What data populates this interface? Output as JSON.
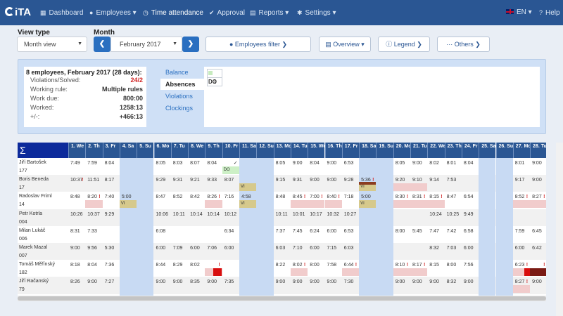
{
  "app": {
    "logo": "iTA"
  },
  "nav": {
    "dashboard": "Dashboard",
    "employees": "Employees",
    "time_attendance": "Time attendance",
    "approval": "Approval",
    "reports": "Reports",
    "settings": "Settings",
    "language": "EN",
    "help": "Help"
  },
  "controls": {
    "view_type_label": "View type",
    "view_type_value": "Month view",
    "month_label": "Month",
    "month_value": "February 2017",
    "employees_filter": "Employees filter",
    "overview": "Overview",
    "legend": "Legend",
    "others": "Others"
  },
  "summary": {
    "title": "8 employees, February 2017 (28 days):",
    "rows": [
      {
        "k": "Violations/Solved:",
        "v": "24/2",
        "red": true
      },
      {
        "k": "Working rule:",
        "v": "Multiple rules"
      },
      {
        "k": "Work due:",
        "v": "800:00"
      },
      {
        "k": "Worked:",
        "v": "1258:13"
      },
      {
        "k": "+/-:",
        "v": "+466:13"
      }
    ]
  },
  "tabs": [
    "Balance",
    "Absences",
    "Violations",
    "Clockings"
  ],
  "active_tab": "Absences",
  "absence_legend": {
    "code": "DO",
    "count": "1",
    "color": "#c7ebbf"
  },
  "grid": {
    "sigma": "Σ",
    "days": [
      "1. We",
      "2. Th",
      "3. Fr",
      "4. Sa",
      "5. Su",
      "6. Mo",
      "7. Tu",
      "8. We",
      "9. Th",
      "10. Fr",
      "11. Sa",
      "12. Su",
      "13. Mo",
      "14. Tu",
      "15. We",
      "16. Th",
      "17. Fr",
      "18. Sa",
      "19. Su",
      "20. Mo",
      "21. Tu",
      "22. We",
      "23. Th",
      "24. Fr",
      "25. Sa",
      "26. Su",
      "27. Mo",
      "28. Tu"
    ],
    "weekend_index": [
      3,
      4,
      10,
      11,
      17,
      18,
      24,
      25
    ],
    "employees": [
      {
        "name": "Jiří Bartošek",
        "id": "177",
        "cells": {
          "0": [
            "7:49",
            "9:00"
          ],
          "1": [
            "7:59",
            "8:04"
          ],
          "2": [
            "8:04",
            ""
          ],
          "5": [
            "8:05",
            "8:05"
          ],
          "6": [
            "8:03",
            "9:00"
          ],
          "7": [
            "8:07",
            "8:10"
          ],
          "8": [
            "8:04",
            "8:04"
          ],
          "9": [
            "",
            ""
          ],
          "12": [
            "8:05",
            "8:05"
          ],
          "13": [
            "9:00",
            "9:00"
          ],
          "14": [
            "8:04",
            "8:04"
          ],
          "15": [
            "9:00",
            "9:00"
          ],
          "16": [
            "6:53",
            "6:53"
          ],
          "19": [
            "8:05",
            "8:05"
          ],
          "20": [
            "9:00",
            "9:00"
          ],
          "21": [
            "8:02",
            "8:02"
          ],
          "22": [
            "8:01",
            "8:01"
          ],
          "23": [
            "8:04",
            "8:04"
          ],
          "26": [
            "8:01",
            "8:01"
          ],
          "27": [
            "9:00",
            "9:00"
          ]
        }
      },
      {
        "name": "Boris Beneda",
        "id": "17",
        "cells": {
          "0": [
            "10:37",
            ""
          ],
          "1": [
            "11:51",
            ""
          ],
          "2": [
            "8:17",
            ""
          ],
          "5": [
            "9:29",
            ""
          ],
          "6": [
            "9:31",
            ""
          ],
          "7": [
            "9:21",
            ""
          ],
          "8": [
            "9:33",
            ""
          ],
          "9": [
            "8:07",
            ""
          ],
          "12": [
            "9:15",
            ""
          ],
          "13": [
            "9:31",
            ""
          ],
          "14": [
            "9:00",
            ""
          ],
          "15": [
            "9:00",
            ""
          ],
          "16": [
            "9:28",
            ""
          ],
          "17": [
            "5:36",
            ""
          ],
          "19": [
            "9:20",
            ""
          ],
          "20": [
            "9:10",
            ""
          ],
          "21": [
            "9:14",
            ""
          ],
          "22": [
            "7:53",
            ""
          ],
          "26": [
            "9:17",
            ""
          ],
          "27": [
            "9:00",
            ""
          ]
        }
      },
      {
        "name": "Radoslav Friml",
        "id": "14",
        "cells": {
          "0": [
            "8:48",
            ""
          ],
          "1": [
            "8:20",
            ""
          ],
          "2": [
            "7:40",
            ""
          ],
          "3": [
            "5:00",
            ""
          ],
          "5": [
            "8:47",
            ""
          ],
          "6": [
            "8:52",
            ""
          ],
          "7": [
            "8:42",
            ""
          ],
          "8": [
            "8:26",
            ""
          ],
          "9": [
            "7:16",
            ""
          ],
          "10": [
            "4:58",
            ""
          ],
          "12": [
            "8:48",
            ""
          ],
          "13": [
            "8:45",
            ""
          ],
          "14": [
            "7:00",
            ""
          ],
          "15": [
            "8:40",
            ""
          ],
          "16": [
            "7:18",
            ""
          ],
          "17": [
            "5:00",
            ""
          ],
          "19": [
            "8:30",
            ""
          ],
          "20": [
            "8:31",
            ""
          ],
          "21": [
            "8:15",
            ""
          ],
          "22": [
            "8:47",
            ""
          ],
          "23": [
            "6:54",
            ""
          ],
          "26": [
            "8:52",
            ""
          ],
          "27": [
            "8:27",
            ""
          ]
        }
      },
      {
        "name": "Petr Kotrla",
        "id": "004",
        "cells": {
          "0": [
            "10:26",
            ""
          ],
          "1": [
            "10:37",
            ""
          ],
          "2": [
            "9:29",
            ""
          ],
          "5": [
            "10:06",
            ""
          ],
          "6": [
            "10:11",
            ""
          ],
          "7": [
            "10:14",
            ""
          ],
          "8": [
            "10:14",
            ""
          ],
          "9": [
            "10:12",
            ""
          ],
          "12": [
            "10:11",
            ""
          ],
          "13": [
            "10:01",
            ""
          ],
          "14": [
            "10:17",
            ""
          ],
          "15": [
            "10:32",
            ""
          ],
          "16": [
            "10:27",
            ""
          ],
          "21": [
            "10:24",
            ""
          ],
          "22": [
            "10:25",
            ""
          ],
          "23": [
            "9:49",
            ""
          ]
        }
      },
      {
        "name": "Milan Lukáč",
        "id": "006",
        "cells": {
          "0": [
            "8:31",
            ""
          ],
          "1": [
            "7:33",
            ""
          ],
          "5": [
            "6:08",
            ""
          ],
          "9": [
            "6:34",
            ""
          ],
          "12": [
            "7:37",
            ""
          ],
          "13": [
            "7:45",
            ""
          ],
          "14": [
            "6:24",
            ""
          ],
          "15": [
            "6:00",
            ""
          ],
          "16": [
            "6:53",
            ""
          ],
          "19": [
            "8:00",
            ""
          ],
          "20": [
            "5:45",
            ""
          ],
          "21": [
            "7:47",
            ""
          ],
          "22": [
            "7:42",
            ""
          ],
          "23": [
            "6:58",
            ""
          ],
          "26": [
            "7:59",
            ""
          ],
          "27": [
            "6:45",
            ""
          ]
        }
      },
      {
        "name": "Marek Mazal",
        "id": "007",
        "cells": {
          "0": [
            "9:00",
            ""
          ],
          "1": [
            "9:56",
            ""
          ],
          "2": [
            "5:30",
            ""
          ],
          "5": [
            "6:00",
            ""
          ],
          "6": [
            "7:09",
            ""
          ],
          "7": [
            "6:00",
            ""
          ],
          "8": [
            "7:06",
            ""
          ],
          "9": [
            "6:00",
            ""
          ],
          "12": [
            "6:03",
            ""
          ],
          "13": [
            "7:10",
            ""
          ],
          "14": [
            "6:00",
            ""
          ],
          "15": [
            "7:15",
            ""
          ],
          "16": [
            "6:03",
            ""
          ],
          "21": [
            "8:32",
            ""
          ],
          "22": [
            "7:03",
            ""
          ],
          "23": [
            "6:00",
            ""
          ],
          "26": [
            "6:00",
            ""
          ],
          "27": [
            "6:42",
            ""
          ]
        }
      },
      {
        "name": "Tomáš Měřínský",
        "id": "182",
        "cells": {
          "0": [
            "8:18",
            ""
          ],
          "1": [
            "8:04",
            ""
          ],
          "2": [
            "7:36",
            ""
          ],
          "5": [
            "8:44",
            ""
          ],
          "6": [
            "8:29",
            ""
          ],
          "7": [
            "8:02",
            ""
          ],
          "8": [
            "",
            ""
          ],
          "12": [
            "8:22",
            ""
          ],
          "13": [
            "8:02",
            ""
          ],
          "14": [
            "8:00",
            ""
          ],
          "15": [
            "7:58",
            ""
          ],
          "16": [
            "6:44",
            ""
          ],
          "19": [
            "8:10",
            ""
          ],
          "20": [
            "8:17",
            ""
          ],
          "21": [
            "8:15",
            ""
          ],
          "22": [
            "8:00",
            ""
          ],
          "23": [
            "7:56",
            ""
          ],
          "26": [
            "6:23",
            ""
          ],
          "27": [
            "",
            ""
          ]
        }
      },
      {
        "name": "Jiří Račanský",
        "id": "79",
        "cells": {
          "0": [
            "8:26",
            ""
          ],
          "1": [
            "9:00",
            ""
          ],
          "2": [
            "7:27",
            ""
          ],
          "5": [
            "9:00",
            ""
          ],
          "6": [
            "9:00",
            ""
          ],
          "7": [
            "8:35",
            ""
          ],
          "8": [
            "9:00",
            ""
          ],
          "9": [
            "7:35",
            ""
          ],
          "12": [
            "9:00",
            ""
          ],
          "13": [
            "9:00",
            ""
          ],
          "14": [
            "9:00",
            ""
          ],
          "15": [
            "9:00",
            ""
          ],
          "16": [
            "7:30",
            ""
          ],
          "19": [
            "9:00",
            ""
          ],
          "20": [
            "9:00",
            ""
          ],
          "21": [
            "9:00",
            ""
          ],
          "22": [
            "8:32",
            ""
          ],
          "23": [
            "9:00",
            ""
          ],
          "26": [
            "8:27",
            ""
          ],
          "27": [
            "9:00",
            ""
          ]
        }
      }
    ],
    "labels": {
      "do": "DO",
      "vi": "VI",
      "check": "✓",
      "excl": "!"
    }
  }
}
